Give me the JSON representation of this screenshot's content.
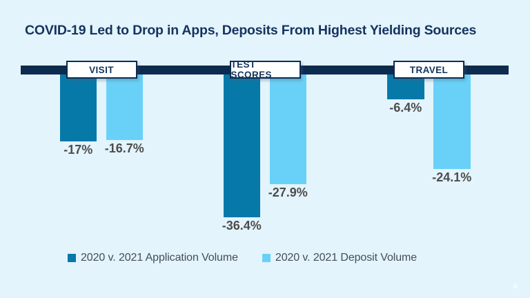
{
  "page": {
    "background_color": "#e3f4fc",
    "page_number": "4"
  },
  "title": {
    "text": "COVID-19 Led to Drop in Apps, Deposits From Highest Yielding Sources",
    "color": "#15335f"
  },
  "chart_data": {
    "type": "bar",
    "title": "COVID-19 Led to Drop in Apps, Deposits From Highest Yielding Sources",
    "orientation": "vertical-negative-from-top-baseline",
    "categories": [
      "VISIT",
      "TEST SCORES",
      "TRAVEL"
    ],
    "series": [
      {
        "name": "2020 v. 2021 Application Volume",
        "color": "#0779a8",
        "values": [
          -17,
          -36.4,
          -6.4
        ],
        "labels": [
          "-17%",
          "-36.4%",
          "-6.4%"
        ]
      },
      {
        "name": "2020 v. 2021 Deposit Volume",
        "color": "#69d1f8",
        "values": [
          -16.7,
          -27.9,
          -24.1
        ],
        "labels": [
          "-16.7%",
          "-27.9%",
          "-24.1%"
        ]
      }
    ],
    "unit": "percent",
    "ylim": [
      -40,
      0
    ],
    "grid": false,
    "legend_position": "bottom",
    "baseline_color": "#0d2a4f",
    "category_box_style": {
      "fill": "#ffffff",
      "border": "#0d2a4f",
      "text": "#14335c"
    },
    "value_label_color": "#4d4d4d"
  }
}
